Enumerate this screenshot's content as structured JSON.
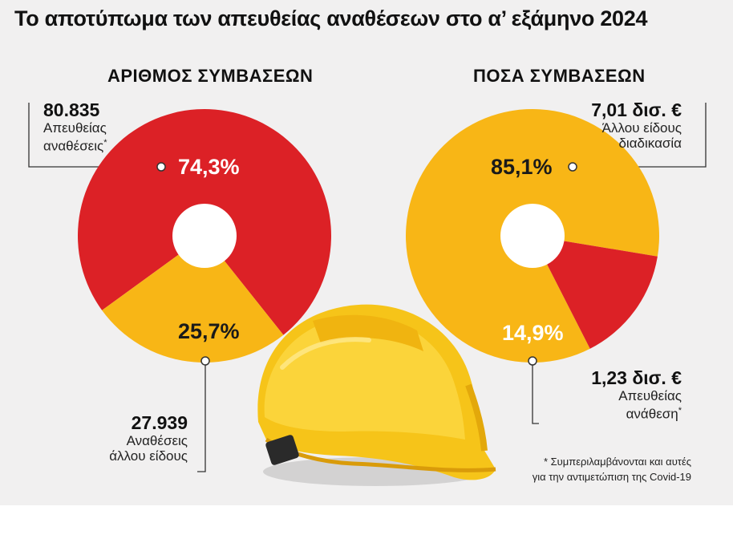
{
  "title": "Το αποτύπωμα των απευθείας αναθέσεων στο α’ εξάμηνο 2024",
  "colors": {
    "red": "#dc2126",
    "yellow": "#f8b616",
    "hole": "#ffffff",
    "line": "#333333"
  },
  "chart_data": [
    {
      "type": "pie",
      "title": "ΑΡΙΘΜΟΣ ΣΥΜΒΑΣΕΩΝ",
      "slices": [
        {
          "value_label": "80.835",
          "label_line1": "Απευθείας",
          "label_line2": "αναθέσεις",
          "mark": "*",
          "percent": 74.3,
          "percent_label": "74,3%",
          "color": "#dc2126"
        },
        {
          "value_label": "27.939",
          "label_line1": "Αναθέσεις",
          "label_line2": "άλλου είδους",
          "mark": "",
          "percent": 25.7,
          "percent_label": "25,7%",
          "color": "#f8b616"
        }
      ]
    },
    {
      "type": "pie",
      "title": "ΠΟΣΑ ΣΥΜΒΑΣΕΩΝ",
      "slices": [
        {
          "value_label": "7,01 δισ. €",
          "label_line1": "Άλλου είδους",
          "label_line2": "διαδικασία",
          "mark": "",
          "percent": 85.1,
          "percent_label": "85,1%",
          "color": "#f8b616"
        },
        {
          "value_label": "1,23 δισ. €",
          "label_line1": "Απευθείας",
          "label_line2": "ανάθεση",
          "mark": "*",
          "percent": 14.9,
          "percent_label": "14,9%",
          "color": "#dc2126"
        }
      ]
    }
  ],
  "footnote": {
    "line1": "* Συμπεριλαμβάνονται και αυτές",
    "line2": "για την αντιμετώπιση της Covid-19"
  }
}
